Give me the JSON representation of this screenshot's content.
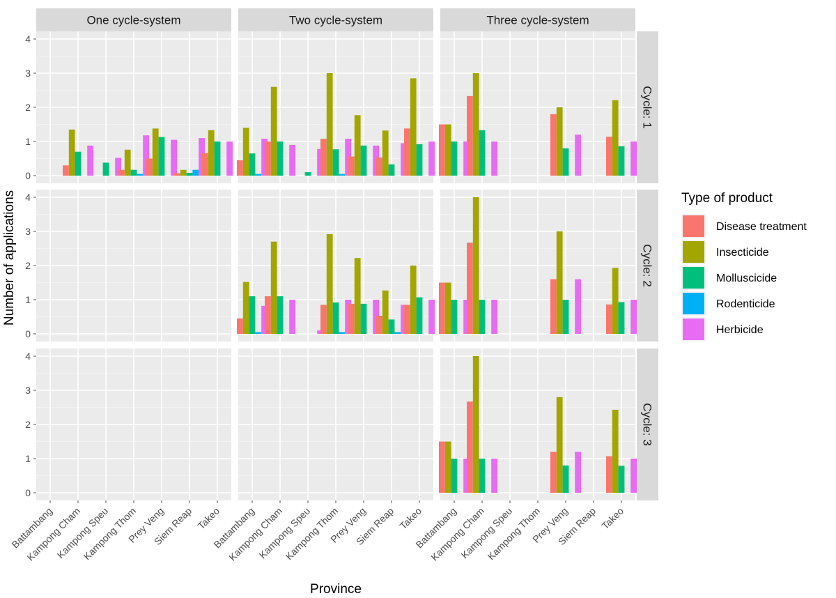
{
  "chart_data": {
    "type": "bar",
    "facet_columns": [
      "One cycle-system",
      "Two cycle-system",
      "Three cycle-system"
    ],
    "facet_rows": [
      "Cycle: 1",
      "Cycle: 2",
      "Cycle: 3"
    ],
    "categories": [
      "Battambang",
      "Kampong Cham",
      "Kampong Speu",
      "Kampong Thom",
      "Prey Veng",
      "Siem Reap",
      "Takeo"
    ],
    "xlabel": "Province",
    "ylabel": "Number of applications",
    "ylim": [
      0,
      4
    ],
    "yticks": [
      "0",
      "1",
      "2",
      "3",
      "4"
    ],
    "legend": {
      "title": "Type of product",
      "position": "right",
      "items": [
        {
          "name": "Disease treatment",
          "color": "#f8766d"
        },
        {
          "name": "Insecticide",
          "color": "#a3a500"
        },
        {
          "name": "Molluscicide",
          "color": "#00bf7d"
        },
        {
          "name": "Rodenticide",
          "color": "#00b0f6"
        },
        {
          "name": "Herbicide",
          "color": "#e76bf3"
        }
      ]
    },
    "panels": [
      {
        "col": 0,
        "row": 0,
        "values": [
          [
            null,
            null,
            null,
            null,
            null
          ],
          [
            0.3,
            1.35,
            0.7,
            null,
            0.88
          ],
          [
            null,
            null,
            0.38,
            null,
            0.52
          ],
          [
            0.17,
            0.76,
            0.17,
            0.05,
            1.18
          ],
          [
            0.5,
            1.38,
            1.13,
            null,
            1.05
          ],
          [
            0.07,
            0.17,
            0.08,
            0.17,
            1.1
          ],
          [
            0.66,
            1.33,
            1.0,
            null,
            1.0
          ]
        ]
      },
      {
        "col": 1,
        "row": 0,
        "values": [
          [
            0.45,
            1.4,
            0.65,
            0.05,
            1.08
          ],
          [
            1.0,
            2.6,
            1.0,
            null,
            0.9
          ],
          [
            null,
            null,
            0.1,
            null,
            0.78
          ],
          [
            1.08,
            3.0,
            0.77,
            0.05,
            1.08
          ],
          [
            0.56,
            1.77,
            0.88,
            null,
            0.88
          ],
          [
            0.53,
            1.32,
            0.33,
            null,
            0.95
          ],
          [
            1.38,
            2.85,
            0.92,
            null,
            1.0
          ]
        ]
      },
      {
        "col": 2,
        "row": 0,
        "values": [
          [
            1.5,
            1.5,
            1.0,
            null,
            1.0
          ],
          [
            2.33,
            3.0,
            1.33,
            null,
            1.0
          ],
          [
            null,
            null,
            null,
            null,
            null
          ],
          [
            null,
            null,
            null,
            null,
            null
          ],
          [
            1.8,
            2.0,
            0.8,
            null,
            1.2
          ],
          [
            null,
            null,
            null,
            null,
            null
          ],
          [
            1.14,
            2.21,
            0.86,
            null,
            1.0
          ]
        ]
      },
      {
        "col": 0,
        "row": 1,
        "values": [
          [
            null,
            null,
            null,
            null,
            null
          ],
          [
            null,
            null,
            null,
            null,
            null
          ],
          [
            null,
            null,
            null,
            null,
            null
          ],
          [
            null,
            null,
            null,
            null,
            null
          ],
          [
            null,
            null,
            null,
            null,
            null
          ],
          [
            null,
            null,
            null,
            null,
            null
          ],
          [
            null,
            null,
            null,
            null,
            null
          ]
        ]
      },
      {
        "col": 1,
        "row": 1,
        "values": [
          [
            0.45,
            1.52,
            1.1,
            0.05,
            0.82
          ],
          [
            1.1,
            2.7,
            1.1,
            null,
            1.0
          ],
          [
            null,
            null,
            null,
            null,
            0.1
          ],
          [
            0.85,
            2.92,
            0.92,
            0.05,
            1.0
          ],
          [
            0.88,
            2.22,
            0.88,
            null,
            1.0
          ],
          [
            0.53,
            1.27,
            0.42,
            0.05,
            0.85
          ],
          [
            0.85,
            2.0,
            1.07,
            null,
            1.0
          ]
        ]
      },
      {
        "col": 2,
        "row": 1,
        "values": [
          [
            1.5,
            1.5,
            1.0,
            null,
            1.0
          ],
          [
            2.67,
            4.0,
            1.0,
            null,
            1.0
          ],
          [
            null,
            null,
            null,
            null,
            null
          ],
          [
            null,
            null,
            null,
            null,
            null
          ],
          [
            1.6,
            3.0,
            1.0,
            null,
            1.6
          ],
          [
            null,
            null,
            null,
            null,
            null
          ],
          [
            0.86,
            1.93,
            0.93,
            null,
            1.0
          ]
        ]
      },
      {
        "col": 0,
        "row": 2,
        "values": [
          [
            null,
            null,
            null,
            null,
            null
          ],
          [
            null,
            null,
            null,
            null,
            null
          ],
          [
            null,
            null,
            null,
            null,
            null
          ],
          [
            null,
            null,
            null,
            null,
            null
          ],
          [
            null,
            null,
            null,
            null,
            null
          ],
          [
            null,
            null,
            null,
            null,
            null
          ],
          [
            null,
            null,
            null,
            null,
            null
          ]
        ]
      },
      {
        "col": 1,
        "row": 2,
        "values": [
          [
            null,
            null,
            null,
            null,
            null
          ],
          [
            null,
            null,
            null,
            null,
            null
          ],
          [
            null,
            null,
            null,
            null,
            null
          ],
          [
            null,
            null,
            null,
            null,
            null
          ],
          [
            null,
            null,
            null,
            null,
            null
          ],
          [
            null,
            null,
            null,
            null,
            null
          ],
          [
            null,
            null,
            null,
            null,
            null
          ]
        ]
      },
      {
        "col": 2,
        "row": 2,
        "values": [
          [
            1.5,
            1.5,
            1.0,
            null,
            1.0
          ],
          [
            2.67,
            4.0,
            1.0,
            null,
            1.0
          ],
          [
            null,
            null,
            null,
            null,
            null
          ],
          [
            null,
            null,
            null,
            null,
            null
          ],
          [
            1.2,
            2.8,
            0.8,
            null,
            1.2
          ],
          [
            null,
            null,
            null,
            null,
            null
          ],
          [
            1.07,
            2.43,
            0.79,
            null,
            1.0
          ]
        ]
      }
    ]
  }
}
